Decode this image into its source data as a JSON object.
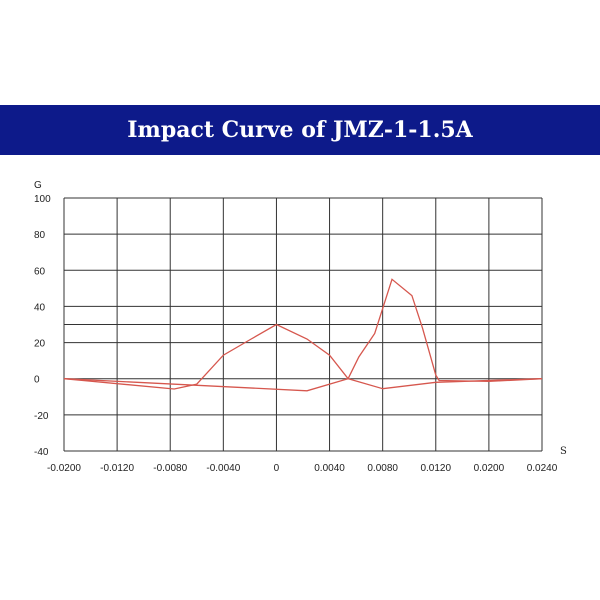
{
  "title": "Impact Curve of JMZ-1-1.5A",
  "chart_data": {
    "type": "line",
    "title": "Impact Curve of JMZ-1-1.5A",
    "xlabel": "S",
    "ylabel": "G",
    "x_ticks": [
      -0.02,
      -0.012,
      -0.008,
      -0.004,
      0,
      0.004,
      0.008,
      0.012,
      0.02,
      0.024
    ],
    "x_tick_labels": [
      "-0.0200",
      "-0.0120",
      "-0.0080",
      "-0.0040",
      "0",
      "0.0040",
      "0.0080",
      "0.0120",
      "0.0200",
      "0.0240"
    ],
    "y_ticks": [
      100,
      80,
      60,
      40,
      20,
      0,
      -20,
      -40
    ],
    "y_tick_labels": [
      "100",
      "80",
      "60",
      "40",
      "20",
      "0",
      "-20",
      "-40"
    ],
    "y_extra_gridlines": [
      30
    ],
    "xlim": [
      -0.02,
      0.024
    ],
    "ylim": [
      -40,
      100
    ],
    "grid": true,
    "line_color": "#d6574e",
    "grid_color": "#333333",
    "series": [
      {
        "points": [
          [
            -0.02,
            0
          ],
          [
            -0.0077,
            -5.7
          ],
          [
            -0.006,
            -3
          ],
          [
            -0.004,
            13
          ],
          [
            -0.0019,
            22
          ],
          [
            0,
            30
          ],
          [
            0.0023,
            22
          ],
          [
            0.004,
            13
          ],
          [
            0.0054,
            0
          ],
          [
            0.008,
            -5.5
          ],
          [
            0.012,
            -2
          ],
          [
            0.024,
            0
          ]
        ]
      },
      {
        "points": [
          [
            -0.02,
            0
          ],
          [
            0.0023,
            -6.7
          ],
          [
            0.0054,
            0
          ],
          [
            0.0062,
            12
          ],
          [
            0.0074,
            25
          ],
          [
            0.0087,
            55
          ],
          [
            0.0102,
            46
          ],
          [
            0.011,
            28
          ],
          [
            0.012,
            2
          ],
          [
            0.0125,
            -1
          ],
          [
            0.02,
            -1.5
          ],
          [
            0.024,
            0
          ]
        ]
      }
    ]
  }
}
